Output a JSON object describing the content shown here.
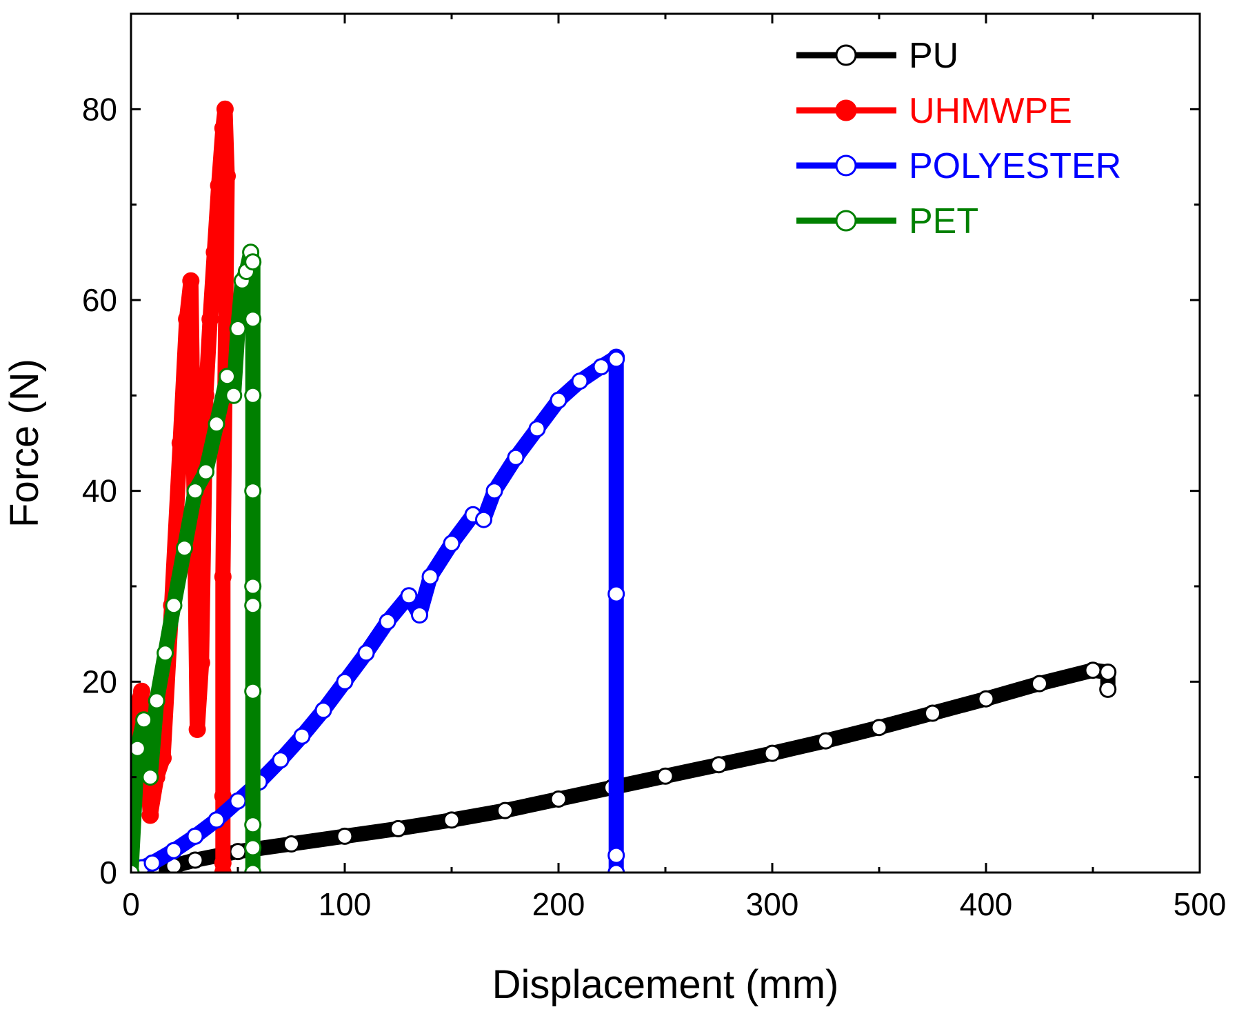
{
  "chart_data": {
    "type": "line",
    "title": "",
    "xlabel": "Displacement (mm)",
    "ylabel": "Force (N)",
    "xlim": [
      0,
      500
    ],
    "ylim": [
      0,
      90
    ],
    "xticks": [
      0,
      100,
      200,
      300,
      400,
      500
    ],
    "yticks": [
      0,
      20,
      40,
      60,
      80
    ],
    "legend_position": "top-right",
    "grid": false,
    "series": [
      {
        "name": "PU",
        "color": "#000000",
        "marker": "open-circle",
        "x": [
          0,
          10,
          20,
          30,
          50,
          75,
          100,
          125,
          150,
          175,
          200,
          225,
          250,
          275,
          300,
          325,
          350,
          375,
          400,
          425,
          450,
          457,
          457
        ],
        "y": [
          0,
          0.3,
          0.7,
          1.3,
          2.2,
          3.0,
          3.8,
          4.6,
          5.5,
          6.5,
          7.7,
          8.9,
          10.1,
          11.3,
          12.5,
          13.8,
          15.2,
          16.7,
          18.2,
          19.8,
          21.2,
          21.0,
          19.2
        ]
      },
      {
        "name": "UHMWPE",
        "color": "#ff0000",
        "marker": "filled-circle",
        "x": [
          0,
          2,
          5,
          7,
          9,
          12,
          15,
          19,
          23,
          26,
          28,
          30,
          31,
          33,
          35,
          37,
          39,
          41,
          43,
          44,
          45,
          43,
          43,
          43,
          43
        ],
        "y": [
          0,
          17,
          19,
          13,
          6,
          10,
          12,
          28,
          45,
          58,
          62,
          32,
          15,
          22,
          50,
          58,
          65,
          72,
          78,
          80,
          73,
          31,
          8,
          1,
          0
        ]
      },
      {
        "name": "POLYESTER",
        "color": "#0000ff",
        "marker": "open-circle",
        "x": [
          0,
          5,
          10,
          20,
          30,
          40,
          50,
          60,
          70,
          80,
          90,
          100,
          110,
          120,
          130,
          135,
          140,
          150,
          160,
          165,
          170,
          180,
          190,
          200,
          210,
          220,
          227,
          227,
          227,
          227,
          227
        ],
        "y": [
          0,
          0.5,
          1.0,
          2.3,
          3.8,
          5.5,
          7.5,
          9.5,
          11.8,
          14.3,
          17.0,
          20.0,
          23.0,
          26.3,
          29.0,
          27.0,
          31.0,
          34.5,
          37.5,
          37.0,
          40.0,
          43.5,
          46.5,
          49.5,
          51.5,
          53.0,
          54.0,
          53.8,
          29.2,
          1.8,
          0
        ]
      },
      {
        "name": "PET",
        "color": "#008000",
        "marker": "open-circle",
        "x": [
          0,
          3,
          6,
          9,
          12,
          16,
          20,
          25,
          30,
          35,
          40,
          45,
          48,
          50,
          52,
          54,
          56,
          57,
          57,
          57,
          57,
          57,
          57,
          57,
          57,
          57,
          57
        ],
        "y": [
          0,
          13,
          16,
          10,
          18,
          23,
          28,
          34,
          40,
          42,
          47,
          52,
          50,
          57,
          62,
          63,
          65,
          64,
          58,
          50,
          40,
          30,
          28,
          19,
          5,
          2.6,
          0
        ]
      }
    ]
  }
}
